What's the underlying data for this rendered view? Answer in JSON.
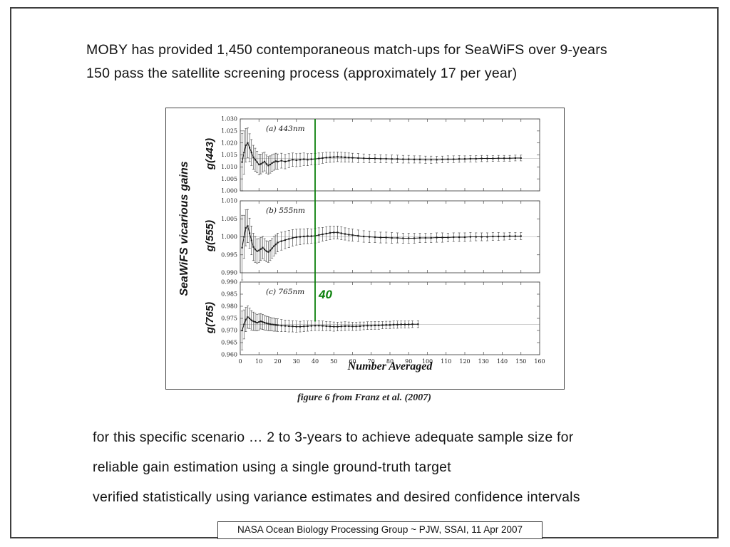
{
  "slide": {
    "header": {
      "line1": "MOBY has provided 1,450 contemporaneous match-ups for SeaWiFS over 9-years",
      "line2": "150 pass the satellite screening process (approximately 17 per year)"
    },
    "figure_caption": "figure 6 from Franz et al. (2007)",
    "body": {
      "line1": "for this specific scenario … 2 to 3-years to achieve adequate sample size for",
      "line2": "reliable gain estimation using a single ground-truth target",
      "line3": "verified statistically using variance estimates and desired confidence intervals"
    },
    "footer": "NASA Ocean Biology Processing Group ~ PJW, SSAI, 11 Apr 2007"
  },
  "figure": {
    "group_ylabel": "SeaWiFS vicarious gains",
    "x_axis_label": "Number Averaged",
    "annotation": {
      "x": 40,
      "label": "40",
      "color": "#0b800b"
    }
  },
  "chart_data": [
    {
      "type": "scatter",
      "title": "(a) 443nm",
      "ylabel": "g(443)",
      "xlabel": "",
      "ylim": [
        1.0,
        1.03
      ],
      "ytick_step": 0.005,
      "xlim": [
        0,
        160
      ],
      "xtick_step": 10,
      "ref_line": 1.0135,
      "point_format": "[n, mean gain, plus-minus error]",
      "points": [
        [
          1,
          1.012,
          0.012
        ],
        [
          2,
          1.016,
          0.009
        ],
        [
          3,
          1.019,
          0.007
        ],
        [
          4,
          1.02,
          0.0062
        ],
        [
          5,
          1.018,
          0.0058
        ],
        [
          6,
          1.016,
          0.0054
        ],
        [
          7,
          1.014,
          0.005
        ],
        [
          8,
          1.013,
          0.0048
        ],
        [
          9,
          1.012,
          0.0045
        ],
        [
          10,
          1.011,
          0.0043
        ],
        [
          11,
          1.0112,
          0.0041
        ],
        [
          12,
          1.0118,
          0.004
        ],
        [
          13,
          1.0122,
          0.0039
        ],
        [
          14,
          1.0112,
          0.0038
        ],
        [
          15,
          1.0106,
          0.0037
        ],
        [
          16,
          1.011,
          0.0036
        ],
        [
          17,
          1.0116,
          0.0035
        ],
        [
          18,
          1.012,
          0.0034
        ],
        [
          19,
          1.0124,
          0.0033
        ],
        [
          20,
          1.0122,
          0.0032
        ],
        [
          22,
          1.0126,
          0.0031
        ],
        [
          24,
          1.0122,
          0.003
        ],
        [
          26,
          1.0126,
          0.0029
        ],
        [
          28,
          1.013,
          0.0028
        ],
        [
          30,
          1.0128,
          0.0027
        ],
        [
          32,
          1.013,
          0.0027
        ],
        [
          34,
          1.0132,
          0.0026
        ],
        [
          36,
          1.013,
          0.0025
        ],
        [
          38,
          1.0132,
          0.0024
        ],
        [
          40,
          1.0133,
          0.0023
        ],
        [
          42,
          1.0135,
          0.0023
        ],
        [
          44,
          1.0137,
          0.0022
        ],
        [
          46,
          1.0139,
          0.0022
        ],
        [
          48,
          1.014,
          0.0021
        ],
        [
          50,
          1.0141,
          0.0021
        ],
        [
          52,
          1.0142,
          0.002
        ],
        [
          54,
          1.0141,
          0.002
        ],
        [
          56,
          1.014,
          0.002
        ],
        [
          58,
          1.0139,
          0.0019
        ],
        [
          60,
          1.0138,
          0.0019
        ],
        [
          63,
          1.0137,
          0.0019
        ],
        [
          66,
          1.0136,
          0.0018
        ],
        [
          69,
          1.0135,
          0.0018
        ],
        [
          72,
          1.0135,
          0.0018
        ],
        [
          75,
          1.0134,
          0.0017
        ],
        [
          78,
          1.0134,
          0.0017
        ],
        [
          81,
          1.0133,
          0.0017
        ],
        [
          84,
          1.0133,
          0.0016
        ],
        [
          87,
          1.0132,
          0.0016
        ],
        [
          90,
          1.0132,
          0.0016
        ],
        [
          93,
          1.0131,
          0.0015
        ],
        [
          96,
          1.0131,
          0.0015
        ],
        [
          99,
          1.013,
          0.0015
        ],
        [
          102,
          1.013,
          0.0015
        ],
        [
          105,
          1.013,
          0.0014
        ],
        [
          108,
          1.0131,
          0.0014
        ],
        [
          111,
          1.0132,
          0.0014
        ],
        [
          114,
          1.0132,
          0.0014
        ],
        [
          117,
          1.0133,
          0.0014
        ],
        [
          120,
          1.0133,
          0.0013
        ],
        [
          123,
          1.0134,
          0.0013
        ],
        [
          126,
          1.0134,
          0.0013
        ],
        [
          129,
          1.0135,
          0.0013
        ],
        [
          132,
          1.0135,
          0.0013
        ],
        [
          135,
          1.0135,
          0.0012
        ],
        [
          138,
          1.0136,
          0.0012
        ],
        [
          141,
          1.0136,
          0.0012
        ],
        [
          144,
          1.0136,
          0.0012
        ],
        [
          147,
          1.0137,
          0.0012
        ],
        [
          150,
          1.0137,
          0.0012
        ]
      ]
    },
    {
      "type": "scatter",
      "title": "(b) 555nm",
      "ylabel": "g(555)",
      "xlabel": "",
      "ylim": [
        0.99,
        1.01
      ],
      "ytick_step": 0.005,
      "xlim": [
        0,
        160
      ],
      "xtick_step": 10,
      "ref_line": 1.0,
      "point_format": "[n, mean gain, plus-minus error]",
      "points": [
        [
          1,
          0.997,
          0.009
        ],
        [
          2,
          1.0,
          0.006
        ],
        [
          3,
          1.0025,
          0.005
        ],
        [
          4,
          1.003,
          0.0046
        ],
        [
          5,
          1.001,
          0.0042
        ],
        [
          6,
          0.999,
          0.004
        ],
        [
          7,
          0.9972,
          0.0038
        ],
        [
          8,
          0.9965,
          0.0036
        ],
        [
          9,
          0.996,
          0.0034
        ],
        [
          10,
          0.9962,
          0.0033
        ],
        [
          11,
          0.9966,
          0.0032
        ],
        [
          12,
          0.997,
          0.0031
        ],
        [
          13,
          0.9965,
          0.003
        ],
        [
          14,
          0.996,
          0.0029
        ],
        [
          15,
          0.9958,
          0.0029
        ],
        [
          16,
          0.9962,
          0.0028
        ],
        [
          17,
          0.9968,
          0.0027
        ],
        [
          18,
          0.9974,
          0.0027
        ],
        [
          19,
          0.9979,
          0.0026
        ],
        [
          20,
          0.9984,
          0.0026
        ],
        [
          22,
          0.9988,
          0.0025
        ],
        [
          24,
          0.9991,
          0.0024
        ],
        [
          26,
          0.9994,
          0.0024
        ],
        [
          28,
          0.9997,
          0.0023
        ],
        [
          30,
          0.9999,
          0.0022
        ],
        [
          32,
          1.0,
          0.0022
        ],
        [
          34,
          1.0001,
          0.0021
        ],
        [
          36,
          1.0002,
          0.0021
        ],
        [
          38,
          1.0002,
          0.002
        ],
        [
          40,
          1.0003,
          0.002
        ],
        [
          42,
          1.0005,
          0.002
        ],
        [
          44,
          1.0007,
          0.0019
        ],
        [
          46,
          1.0009,
          0.0019
        ],
        [
          48,
          1.0011,
          0.0019
        ],
        [
          50,
          1.0012,
          0.0018
        ],
        [
          52,
          1.0012,
          0.0018
        ],
        [
          54,
          1.001,
          0.0018
        ],
        [
          56,
          1.0008,
          0.0017
        ],
        [
          58,
          1.0006,
          0.0017
        ],
        [
          60,
          1.0005,
          0.0017
        ],
        [
          63,
          1.0003,
          0.0016
        ],
        [
          66,
          1.0001,
          0.0016
        ],
        [
          69,
          1.0,
          0.0016
        ],
        [
          72,
          0.9999,
          0.0015
        ],
        [
          75,
          0.9998,
          0.0015
        ],
        [
          78,
          0.9998,
          0.0015
        ],
        [
          81,
          0.9997,
          0.0015
        ],
        [
          84,
          0.9997,
          0.0014
        ],
        [
          87,
          0.9996,
          0.0014
        ],
        [
          90,
          0.9996,
          0.0014
        ],
        [
          93,
          0.9996,
          0.0014
        ],
        [
          96,
          0.9997,
          0.0013
        ],
        [
          99,
          0.9997,
          0.0013
        ],
        [
          102,
          0.9997,
          0.0013
        ],
        [
          105,
          0.9998,
          0.0013
        ],
        [
          108,
          0.9998,
          0.0013
        ],
        [
          111,
          0.9998,
          0.0012
        ],
        [
          114,
          0.9999,
          0.0012
        ],
        [
          117,
          0.9999,
          0.0012
        ],
        [
          120,
          0.9999,
          0.0012
        ],
        [
          123,
          1.0,
          0.0012
        ],
        [
          126,
          1.0,
          0.0011
        ],
        [
          129,
          1.0,
          0.0011
        ],
        [
          132,
          1.0,
          0.0011
        ],
        [
          135,
          1.0001,
          0.0011
        ],
        [
          138,
          1.0001,
          0.0011
        ],
        [
          141,
          1.0001,
          0.001
        ],
        [
          144,
          1.0002,
          0.001
        ],
        [
          147,
          1.0002,
          0.001
        ],
        [
          150,
          1.0002,
          0.001
        ]
      ]
    },
    {
      "type": "scatter",
      "title": "(c) 765nm",
      "ylabel": "g(765)",
      "xlabel": "Number Averaged",
      "ylim": [
        0.96,
        0.99
      ],
      "ytick_step": 0.005,
      "xlim": [
        0,
        160
      ],
      "xtick_step": 10,
      "ref_line": 0.9725,
      "point_format": "[n, mean gain, plus-minus error]",
      "points": [
        [
          1,
          0.97,
          0.008
        ],
        [
          2,
          0.9725,
          0.006
        ],
        [
          3,
          0.9745,
          0.005
        ],
        [
          4,
          0.9755,
          0.0046
        ],
        [
          5,
          0.975,
          0.0042
        ],
        [
          6,
          0.9742,
          0.004
        ],
        [
          7,
          0.9738,
          0.0038
        ],
        [
          8,
          0.9735,
          0.0036
        ],
        [
          9,
          0.9732,
          0.0034
        ],
        [
          10,
          0.9735,
          0.0033
        ],
        [
          11,
          0.9738,
          0.0032
        ],
        [
          12,
          0.9735,
          0.0031
        ],
        [
          13,
          0.9732,
          0.003
        ],
        [
          14,
          0.973,
          0.0029
        ],
        [
          15,
          0.9728,
          0.0029
        ],
        [
          16,
          0.9726,
          0.0028
        ],
        [
          17,
          0.9725,
          0.0027
        ],
        [
          18,
          0.9724,
          0.0027
        ],
        [
          19,
          0.9723,
          0.0026
        ],
        [
          20,
          0.9722,
          0.0026
        ],
        [
          22,
          0.972,
          0.0025
        ],
        [
          24,
          0.9719,
          0.0024
        ],
        [
          26,
          0.9718,
          0.0024
        ],
        [
          28,
          0.9717,
          0.0023
        ],
        [
          30,
          0.9716,
          0.0023
        ],
        [
          32,
          0.9716,
          0.0022
        ],
        [
          34,
          0.9717,
          0.0022
        ],
        [
          36,
          0.9718,
          0.0021
        ],
        [
          38,
          0.9719,
          0.0021
        ],
        [
          40,
          0.972,
          0.002
        ],
        [
          42,
          0.972,
          0.002
        ],
        [
          44,
          0.9719,
          0.002
        ],
        [
          46,
          0.9718,
          0.0019
        ],
        [
          48,
          0.9717,
          0.0019
        ],
        [
          50,
          0.9716,
          0.0019
        ],
        [
          52,
          0.9716,
          0.0018
        ],
        [
          54,
          0.9717,
          0.0018
        ],
        [
          56,
          0.9718,
          0.0018
        ],
        [
          58,
          0.9718,
          0.0017
        ],
        [
          60,
          0.9717,
          0.0017
        ],
        [
          62,
          0.9717,
          0.0017
        ],
        [
          64,
          0.9718,
          0.0017
        ],
        [
          66,
          0.9719,
          0.0016
        ],
        [
          68,
          0.972,
          0.0016
        ],
        [
          70,
          0.972,
          0.0016
        ],
        [
          72,
          0.9721,
          0.0016
        ],
        [
          74,
          0.9721,
          0.0016
        ],
        [
          76,
          0.9722,
          0.0015
        ],
        [
          78,
          0.9723,
          0.0015
        ],
        [
          80,
          0.9723,
          0.0015
        ],
        [
          82,
          0.9724,
          0.0015
        ],
        [
          84,
          0.9724,
          0.0015
        ],
        [
          86,
          0.9725,
          0.0014
        ],
        [
          88,
          0.9725,
          0.0014
        ],
        [
          90,
          0.9725,
          0.0014
        ],
        [
          92,
          0.9726,
          0.0014
        ],
        [
          95,
          0.9726,
          0.0014
        ]
      ]
    }
  ]
}
